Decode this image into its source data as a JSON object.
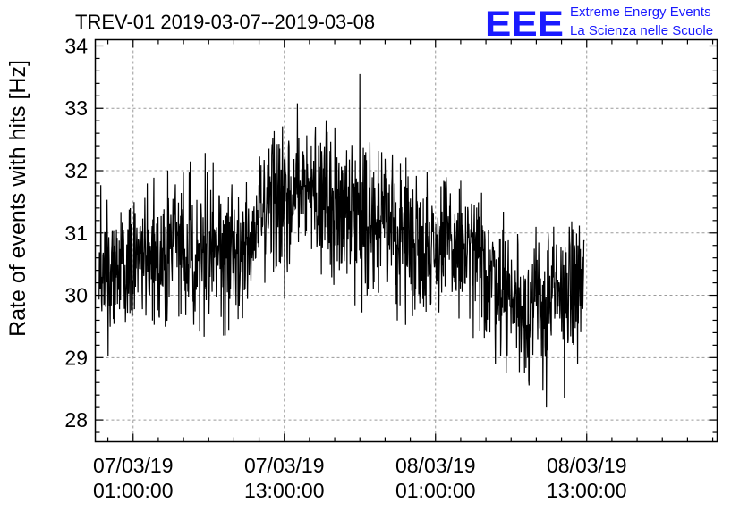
{
  "chart_data": {
    "type": "line",
    "title": "TREV-01 2019-03-07--2019-03-08",
    "ylabel": "Rate of events with hits [Hz]",
    "xlabel": "",
    "ylim": [
      27.65,
      34.1
    ],
    "yticks": [
      28,
      29,
      30,
      31,
      32,
      33,
      34
    ],
    "x_unit": "hours since 07/03/19 00:00:00",
    "xlim": [
      0,
      49.35
    ],
    "xticks": [
      {
        "x": 3,
        "date": "07/03/19",
        "time": "01:00:00"
      },
      {
        "x": 15,
        "date": "07/03/19",
        "time": "13:00:00"
      },
      {
        "x": 27,
        "date": "08/03/19",
        "time": "01:00:00"
      },
      {
        "x": 39,
        "date": "08/03/19",
        "time": "13:00:00"
      }
    ],
    "grid": true,
    "series": [
      {
        "name": "",
        "color": "#000000",
        "x_start": 0.3,
        "x_end": 38.8,
        "trend_x": [
          0.3,
          2.5,
          5.0,
          7.5,
          10.0,
          12.0,
          14.0,
          16.0,
          18.0,
          20.0,
          22.0,
          24.0,
          26.0,
          28.0,
          30.0,
          32.0,
          34.0,
          36.0,
          38.0,
          38.8
        ],
        "trend_y": [
          30.5,
          30.4,
          30.7,
          30.8,
          30.7,
          30.7,
          31.4,
          31.7,
          31.6,
          31.4,
          31.2,
          31.0,
          30.8,
          30.8,
          30.6,
          30.2,
          29.8,
          29.9,
          30.1,
          30.2
        ],
        "range": [
          28.2,
          33.55
        ],
        "max_point": [
          21.0,
          33.55
        ],
        "min_point": [
          35.8,
          28.2
        ]
      }
    ]
  },
  "logo": {
    "letters": "EEE",
    "line1": "Extreme Energy Events",
    "line2": "La Scienza nelle Scuole",
    "color": "#1a1aff"
  }
}
